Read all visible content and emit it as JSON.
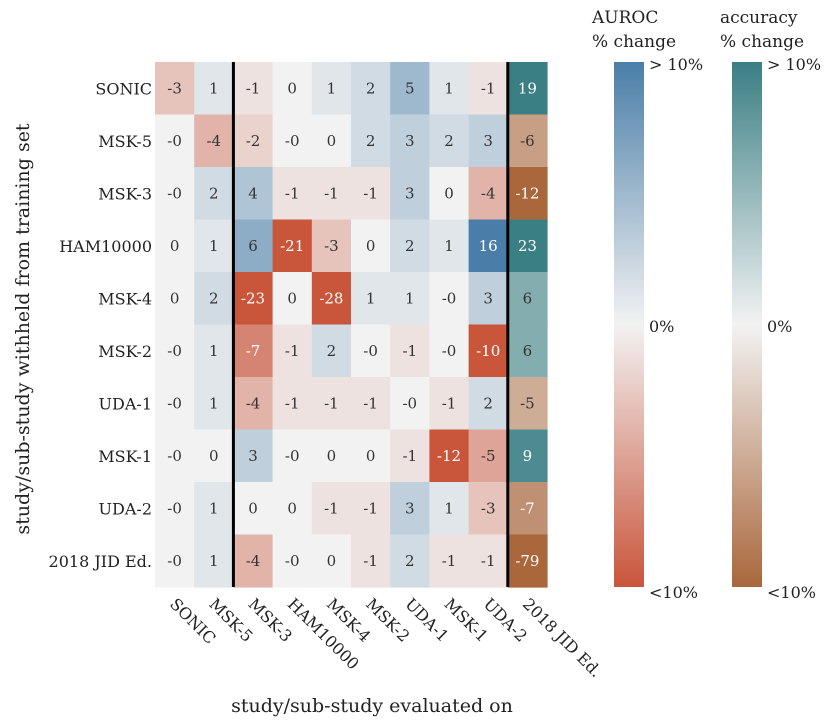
{
  "chart_data": {
    "type": "heatmap",
    "xlabel": "study/sub-study evaluated on",
    "ylabel": "study/sub-study withheld from training set",
    "columns": [
      "SONIC",
      "MSK-5",
      "MSK-3",
      "HAM10000",
      "MSK-4",
      "MSK-2",
      "UDA-1",
      "MSK-1",
      "UDA-2",
      "2018 JID Ed."
    ],
    "rows": [
      "SONIC",
      "MSK-5",
      "MSK-3",
      "HAM10000",
      "MSK-4",
      "MSK-2",
      "UDA-1",
      "MSK-1",
      "UDA-2",
      "2018 JID Ed."
    ],
    "cell_labels": [
      [
        "-3",
        "1",
        "-1",
        "0",
        "1",
        "2",
        "5",
        "1",
        "-1",
        "19"
      ],
      [
        "-0",
        "-4",
        "-2",
        "-0",
        "0",
        "2",
        "3",
        "2",
        "3",
        "-6"
      ],
      [
        "-0",
        "2",
        "4",
        "-1",
        "-1",
        "-1",
        "3",
        "0",
        "-4",
        "-12"
      ],
      [
        "0",
        "1",
        "6",
        "-21",
        "-3",
        "0",
        "2",
        "1",
        "16",
        "23"
      ],
      [
        "0",
        "2",
        "-23",
        "0",
        "-28",
        "1",
        "1",
        "-0",
        "3",
        "6"
      ],
      [
        "-0",
        "1",
        "-7",
        "-1",
        "2",
        "-0",
        "-1",
        "-0",
        "-10",
        "6"
      ],
      [
        "-0",
        "1",
        "-4",
        "-1",
        "-1",
        "-1",
        "-0",
        "-1",
        "2",
        "-5"
      ],
      [
        "-0",
        "0",
        "3",
        "-0",
        "0",
        "0",
        "-1",
        "-12",
        "-5",
        "9"
      ],
      [
        "-0",
        "1",
        "0",
        "0",
        "-1",
        "-1",
        "3",
        "1",
        "-3",
        "-7"
      ],
      [
        "-0",
        "1",
        "-4",
        "-0",
        "0",
        "-1",
        "2",
        "-1",
        "-1",
        "-79"
      ]
    ],
    "values": [
      [
        -3,
        1,
        -1,
        0,
        1,
        2,
        5,
        1,
        -1,
        19
      ],
      [
        0,
        -4,
        -2,
        0,
        0,
        2,
        3,
        2,
        3,
        -6
      ],
      [
        0,
        2,
        4,
        -1,
        -1,
        -1,
        3,
        0,
        -4,
        -12
      ],
      [
        0,
        1,
        6,
        -21,
        -3,
        0,
        2,
        1,
        16,
        23
      ],
      [
        0,
        2,
        -23,
        0,
        -28,
        1,
        1,
        0,
        3,
        6
      ],
      [
        0,
        1,
        -7,
        -1,
        2,
        0,
        -1,
        0,
        -10,
        6
      ],
      [
        0,
        1,
        -4,
        -1,
        -1,
        -1,
        0,
        -1,
        2,
        -5
      ],
      [
        0,
        0,
        3,
        0,
        0,
        0,
        -1,
        -12,
        -5,
        9
      ],
      [
        0,
        1,
        0,
        0,
        -1,
        -1,
        3,
        1,
        -3,
        -7
      ],
      [
        0,
        1,
        -4,
        0,
        0,
        -1,
        2,
        -1,
        -1,
        -79
      ]
    ],
    "metric_by_column": [
      "auroc",
      "auroc",
      "auroc",
      "auroc",
      "auroc",
      "auroc",
      "auroc",
      "auroc",
      "auroc",
      "accuracy"
    ],
    "color_range": [
      -10,
      10
    ],
    "colorbars": [
      {
        "key": "auroc",
        "title_line1": "AUROC",
        "title_line2": "% change",
        "top_label": "> 10%",
        "mid_label": "0%",
        "bottom_label": "<10%",
        "color_low": "#c9553b",
        "color_mid": "#f2f2f2",
        "color_high": "#4a7ea8"
      },
      {
        "key": "accuracy",
        "title_line1": "accuracy",
        "title_line2": "% change",
        "top_label": "> 10%",
        "mid_label": "0%",
        "bottom_label": "<10%",
        "color_low": "#a9673b",
        "color_mid": "#f2f2f2",
        "color_high": "#3a7f84"
      }
    ],
    "separator_after_columns": [
      2,
      9
    ]
  }
}
